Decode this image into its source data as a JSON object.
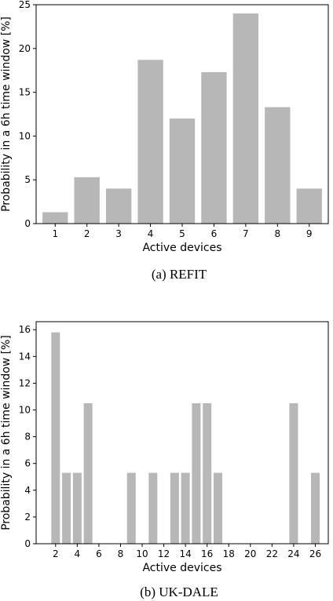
{
  "chart_data": [
    {
      "type": "bar",
      "caption": "(a) REFIT",
      "xlabel": "Active devices",
      "ylabel": "Probability in a 6h time window [%]",
      "x": [
        1,
        2,
        3,
        4,
        5,
        6,
        7,
        8,
        9
      ],
      "values": [
        1.3,
        5.3,
        4.0,
        18.7,
        12.0,
        17.3,
        24.0,
        13.3,
        4.0
      ],
      "xlim": [
        0.4,
        9.6
      ],
      "ylim": [
        0,
        25
      ],
      "xticks": [
        1,
        2,
        3,
        4,
        5,
        6,
        7,
        8,
        9
      ],
      "yticks": [
        0,
        5,
        10,
        15,
        20,
        25
      ],
      "bar_color": "#b7b7b7",
      "grid": false
    },
    {
      "type": "bar",
      "caption": "(b) UK-DALE",
      "xlabel": "Active devices",
      "ylabel": "Probability in a 6h time window [%]",
      "x": [
        2,
        3,
        4,
        5,
        9,
        11,
        13,
        14,
        15,
        16,
        17,
        24,
        26
      ],
      "values": [
        15.8,
        5.3,
        5.3,
        10.5,
        5.3,
        5.3,
        5.3,
        5.3,
        10.5,
        10.5,
        5.3,
        10.5,
        5.3
      ],
      "xlim": [
        0.2,
        27.2
      ],
      "ylim": [
        0,
        16.6
      ],
      "xticks": [
        2,
        4,
        6,
        8,
        10,
        12,
        14,
        16,
        18,
        20,
        22,
        24,
        26
      ],
      "yticks": [
        0,
        2,
        4,
        6,
        8,
        10,
        12,
        14,
        16
      ],
      "bar_color": "#b7b7b7",
      "grid": false
    }
  ]
}
